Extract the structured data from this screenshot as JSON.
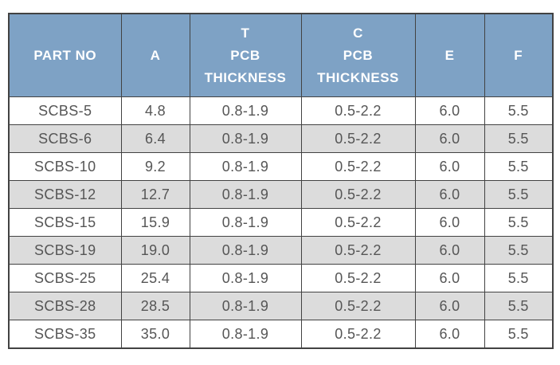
{
  "colors": {
    "header_background": "#7EA2C5",
    "header_text": "#FFFFFF",
    "row_alt_background": "#DCDCDC",
    "cell_text": "#565656",
    "border": "#424242"
  },
  "table": {
    "header": [
      {
        "lines": [
          "PART NO"
        ]
      },
      {
        "lines": [
          "A"
        ]
      },
      {
        "lines": [
          "T",
          "PCB",
          "THICKNESS"
        ]
      },
      {
        "lines": [
          "C",
          "PCB",
          "THICKNESS"
        ]
      },
      {
        "lines": [
          "E"
        ]
      },
      {
        "lines": [
          "F"
        ]
      }
    ],
    "rows": [
      [
        "SCBS-5",
        "4.8",
        "0.8-1.9",
        "0.5-2.2",
        "6.0",
        "5.5"
      ],
      [
        "SCBS-6",
        "6.4",
        "0.8-1.9",
        "0.5-2.2",
        "6.0",
        "5.5"
      ],
      [
        "SCBS-10",
        "9.2",
        "0.8-1.9",
        "0.5-2.2",
        "6.0",
        "5.5"
      ],
      [
        "SCBS-12",
        "12.7",
        "0.8-1.9",
        "0.5-2.2",
        "6.0",
        "5.5"
      ],
      [
        "SCBS-15",
        "15.9",
        "0.8-1.9",
        "0.5-2.2",
        "6.0",
        "5.5"
      ],
      [
        "SCBS-19",
        "19.0",
        "0.8-1.9",
        "0.5-2.2",
        "6.0",
        "5.5"
      ],
      [
        "SCBS-25",
        "25.4",
        "0.8-1.9",
        "0.5-2.2",
        "6.0",
        "5.5"
      ],
      [
        "SCBS-28",
        "28.5",
        "0.8-1.9",
        "0.5-2.2",
        "6.0",
        "5.5"
      ],
      [
        "SCBS-35",
        "35.0",
        "0.8-1.9",
        "0.5-2.2",
        "6.0",
        "5.5"
      ]
    ]
  },
  "chart_data": {
    "type": "table",
    "title": "",
    "columns": [
      "PART NO",
      "A",
      "T PCB THICKNESS",
      "C PCB THICKNESS",
      "E",
      "F"
    ],
    "rows": [
      [
        "SCBS-5",
        "4.8",
        "0.8-1.9",
        "0.5-2.2",
        "6.0",
        "5.5"
      ],
      [
        "SCBS-6",
        "6.4",
        "0.8-1.9",
        "0.5-2.2",
        "6.0",
        "5.5"
      ],
      [
        "SCBS-10",
        "9.2",
        "0.8-1.9",
        "0.5-2.2",
        "6.0",
        "5.5"
      ],
      [
        "SCBS-12",
        "12.7",
        "0.8-1.9",
        "0.5-2.2",
        "6.0",
        "5.5"
      ],
      [
        "SCBS-15",
        "15.9",
        "0.8-1.9",
        "0.5-2.2",
        "6.0",
        "5.5"
      ],
      [
        "SCBS-19",
        "19.0",
        "0.8-1.9",
        "0.5-2.2",
        "6.0",
        "5.5"
      ],
      [
        "SCBS-25",
        "25.4",
        "0.8-1.9",
        "0.5-2.2",
        "6.0",
        "5.5"
      ],
      [
        "SCBS-28",
        "28.5",
        "0.8-1.9",
        "0.5-2.2",
        "6.0",
        "5.5"
      ],
      [
        "SCBS-35",
        "35.0",
        "0.8-1.9",
        "0.5-2.2",
        "6.0",
        "5.5"
      ]
    ]
  }
}
